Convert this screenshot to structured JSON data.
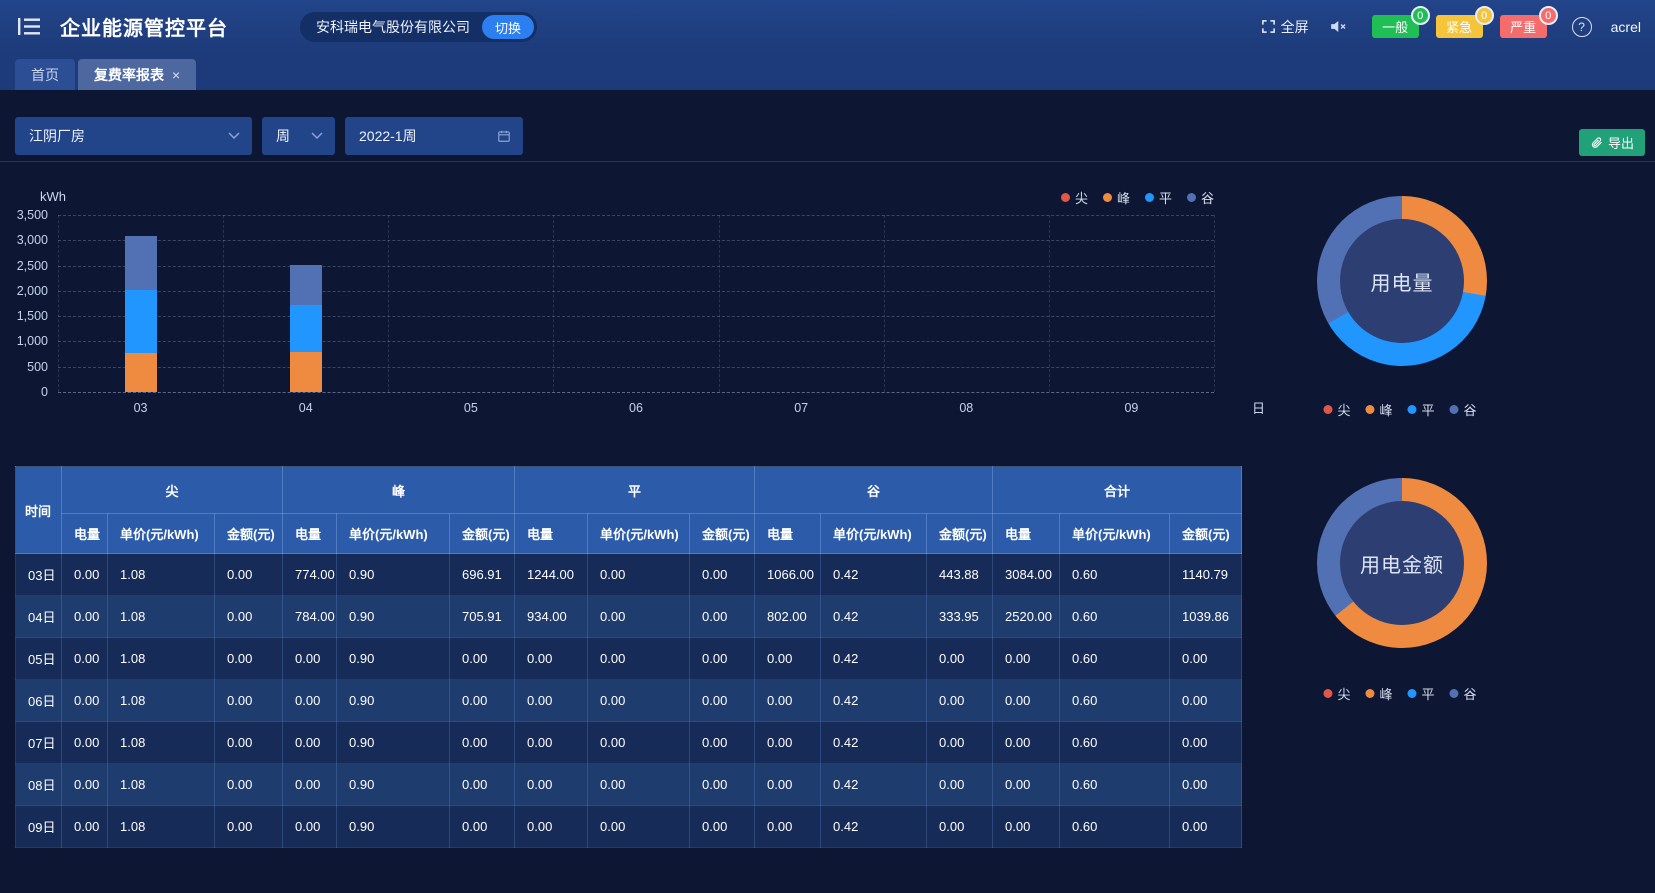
{
  "app": {
    "title": "企业能源管控平台",
    "company": "安科瑞电气股份有限公司",
    "switch_label": "切换",
    "fullscreen_label": "全屏",
    "user": "acrel",
    "accent_blue": "#2d7ff0",
    "export_green": "#21a178"
  },
  "alarms": [
    {
      "label": "一般",
      "count": "0",
      "color": "#1fbf56"
    },
    {
      "label": "紧急",
      "count": "0",
      "color": "#f5c43b"
    },
    {
      "label": "严重",
      "count": "0",
      "color": "#f56c6c"
    }
  ],
  "tabs": [
    {
      "label": "首页",
      "active": false,
      "closable": false
    },
    {
      "label": "复费率报表",
      "active": true,
      "closable": true
    }
  ],
  "filters": {
    "station": "江阴厂房",
    "period": "周",
    "date": "2022-1周",
    "export_label": "导出"
  },
  "legend": {
    "labels": [
      "尖",
      "峰",
      "平",
      "谷"
    ],
    "colors": [
      "#e25749",
      "#ef8b41",
      "#2196ff",
      "#5271b5"
    ]
  },
  "chart_data": [
    {
      "type": "bar",
      "stacked": true,
      "ylabel": "kWh",
      "x_unit": "日",
      "categories": [
        "03",
        "04",
        "05",
        "06",
        "07",
        "08",
        "09"
      ],
      "series": [
        {
          "name": "尖",
          "color": "#e25749",
          "values": [
            0,
            0,
            0,
            0,
            0,
            0,
            0
          ]
        },
        {
          "name": "峰",
          "color": "#ef8b41",
          "values": [
            774,
            784,
            0,
            0,
            0,
            0,
            0
          ]
        },
        {
          "name": "平",
          "color": "#2196ff",
          "values": [
            1244,
            934,
            0,
            0,
            0,
            0,
            0
          ]
        },
        {
          "name": "谷",
          "color": "#5271b5",
          "values": [
            1066,
            802,
            0,
            0,
            0,
            0,
            0
          ]
        }
      ],
      "ylim": [
        0,
        3500
      ],
      "ytick_step": 500,
      "grid": true,
      "legend_position": "top-right"
    },
    {
      "type": "pie",
      "subtype": "donut",
      "title": "用电量",
      "labels": [
        "尖",
        "峰",
        "平",
        "谷"
      ],
      "values": [
        0,
        1558,
        2178,
        1868
      ],
      "colors": [
        "#e25749",
        "#ef8b41",
        "#2196ff",
        "#5271b5"
      ],
      "legend_position": "bottom"
    },
    {
      "type": "pie",
      "subtype": "donut",
      "title": "用电金额",
      "labels": [
        "尖",
        "峰",
        "平",
        "谷"
      ],
      "values": [
        0,
        1402.82,
        0,
        777.83
      ],
      "colors": [
        "#e25749",
        "#ef8b41",
        "#2196ff",
        "#5271b5"
      ],
      "legend_position": "bottom"
    }
  ],
  "table": {
    "time_header": "时间",
    "groups": [
      "尖",
      "峰",
      "平",
      "谷",
      "合计"
    ],
    "sub_headers": [
      "电量",
      "单价(元/kWh)",
      "金额(元)"
    ],
    "rows": [
      {
        "time": "03日",
        "cells": [
          "0.00",
          "1.08",
          "0.00",
          "774.00",
          "0.90",
          "696.91",
          "1244.00",
          "0.00",
          "0.00",
          "1066.00",
          "0.42",
          "443.88",
          "3084.00",
          "0.60",
          "1140.79"
        ]
      },
      {
        "time": "04日",
        "cells": [
          "0.00",
          "1.08",
          "0.00",
          "784.00",
          "0.90",
          "705.91",
          "934.00",
          "0.00",
          "0.00",
          "802.00",
          "0.42",
          "333.95",
          "2520.00",
          "0.60",
          "1039.86"
        ]
      },
      {
        "time": "05日",
        "cells": [
          "0.00",
          "1.08",
          "0.00",
          "0.00",
          "0.90",
          "0.00",
          "0.00",
          "0.00",
          "0.00",
          "0.00",
          "0.42",
          "0.00",
          "0.00",
          "0.60",
          "0.00"
        ]
      },
      {
        "time": "06日",
        "cells": [
          "0.00",
          "1.08",
          "0.00",
          "0.00",
          "0.90",
          "0.00",
          "0.00",
          "0.00",
          "0.00",
          "0.00",
          "0.42",
          "0.00",
          "0.00",
          "0.60",
          "0.00"
        ]
      },
      {
        "time": "07日",
        "cells": [
          "0.00",
          "1.08",
          "0.00",
          "0.00",
          "0.90",
          "0.00",
          "0.00",
          "0.00",
          "0.00",
          "0.00",
          "0.42",
          "0.00",
          "0.00",
          "0.60",
          "0.00"
        ]
      },
      {
        "time": "08日",
        "cells": [
          "0.00",
          "1.08",
          "0.00",
          "0.00",
          "0.90",
          "0.00",
          "0.00",
          "0.00",
          "0.00",
          "0.00",
          "0.42",
          "0.00",
          "0.00",
          "0.60",
          "0.00"
        ]
      },
      {
        "time": "09日",
        "cells": [
          "0.00",
          "1.08",
          "0.00",
          "0.00",
          "0.90",
          "0.00",
          "0.00",
          "0.00",
          "0.00",
          "0.00",
          "0.42",
          "0.00",
          "0.00",
          "0.60",
          "0.00"
        ]
      }
    ]
  }
}
